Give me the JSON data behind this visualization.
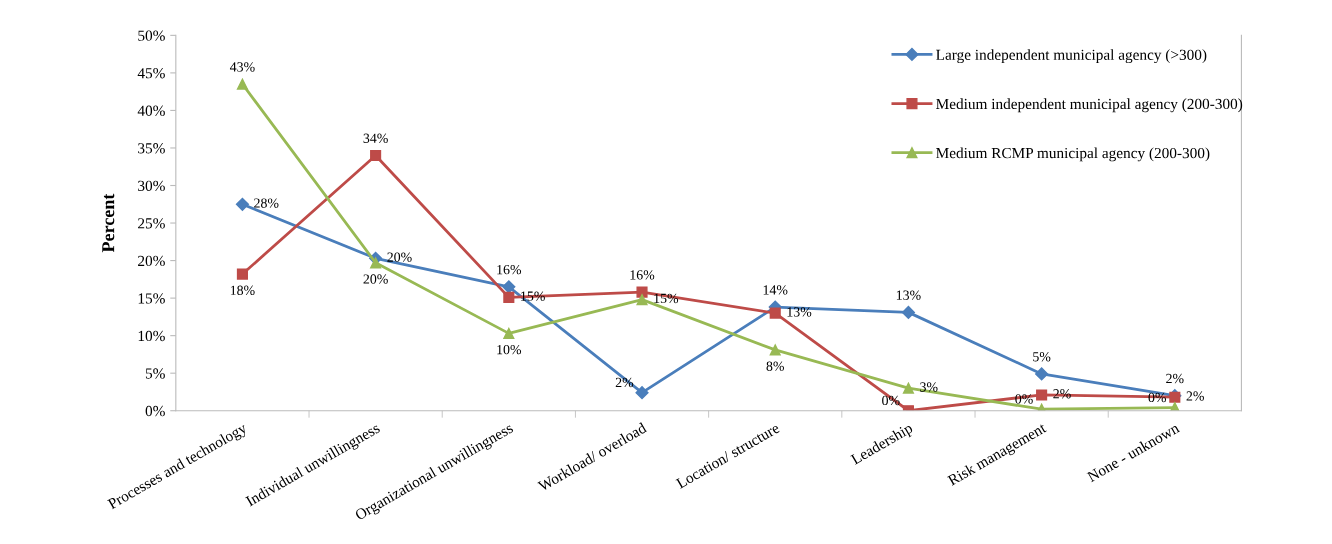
{
  "chart_data": {
    "type": "line",
    "ylabel": "Percent",
    "categories": [
      "Processes and technology",
      "Individual unwillingness",
      "Organizational unwillingness",
      "Workload/ overload",
      "Location/ structure",
      "Leadership",
      "Risk management",
      "None - unknown"
    ],
    "series": [
      {
        "name": "Large independent municipal agency (>300)",
        "color": "#4a7ebb",
        "marker": "diamond",
        "values": [
          27.5,
          20.3,
          16.5,
          2.4,
          13.8,
          13.1,
          4.9,
          2.0
        ],
        "value_labels": [
          "28%",
          "20%",
          "16%",
          "2%",
          "14%",
          "13%",
          "5%",
          "2%"
        ]
      },
      {
        "name": "Medium independent municipal agency (200-300)",
        "color": "#be4b48",
        "marker": "square",
        "values": [
          18.2,
          34.0,
          15.1,
          15.8,
          13.0,
          0.0,
          2.1,
          1.8
        ],
        "value_labels": [
          "18%",
          "34%",
          "15%",
          "16%",
          "13%",
          "0%",
          "2%",
          "2%"
        ]
      },
      {
        "name": "Medium RCMP municipal agency (200-300)",
        "color": "#98b954",
        "marker": "triangle",
        "values": [
          43.5,
          19.7,
          10.3,
          14.8,
          8.1,
          3.0,
          0.2,
          0.4
        ],
        "value_labels": [
          "43%",
          "20%",
          "10%",
          "15%",
          "8%",
          "3%",
          "0%",
          "0%"
        ]
      }
    ],
    "ylim": [
      0,
      50
    ],
    "yticks": [
      {
        "value": 0,
        "label": "0%"
      },
      {
        "value": 5,
        "label": "5%"
      },
      {
        "value": 10,
        "label": "10%"
      },
      {
        "value": 15,
        "label": "15%"
      },
      {
        "value": 20,
        "label": "20%"
      },
      {
        "value": 25,
        "label": "25%"
      },
      {
        "value": 30,
        "label": "30%"
      },
      {
        "value": 35,
        "label": "35%"
      },
      {
        "value": 40,
        "label": "40%"
      },
      {
        "value": 45,
        "label": "45%"
      },
      {
        "value": 50,
        "label": "50%"
      }
    ],
    "legend": "top right",
    "grid": false
  }
}
